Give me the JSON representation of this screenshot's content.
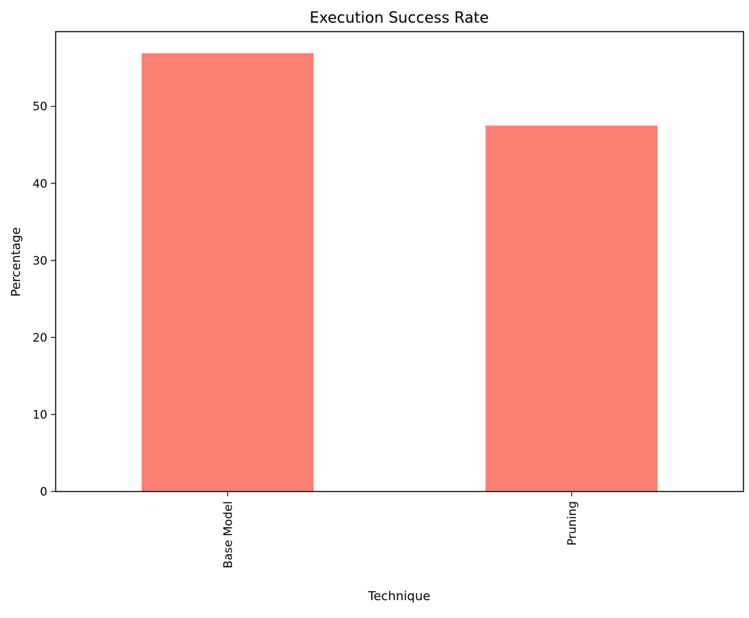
{
  "chart_data": {
    "type": "bar",
    "title": "Execution Success Rate",
    "xlabel": "Technique",
    "ylabel": "Percentage",
    "categories": [
      "Base Model",
      "Pruning"
    ],
    "values": [
      56.9,
      47.5
    ],
    "ylim": [
      0,
      59.7
    ],
    "yticks": [
      0,
      10,
      20,
      30,
      40,
      50
    ],
    "bar_color": "#fa8072",
    "grid": false,
    "legend": "none"
  }
}
